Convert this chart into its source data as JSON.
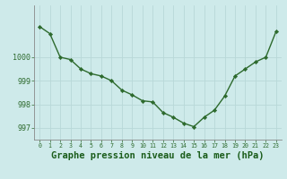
{
  "x": [
    0,
    1,
    2,
    3,
    4,
    5,
    6,
    7,
    8,
    9,
    10,
    11,
    12,
    13,
    14,
    15,
    16,
    17,
    18,
    19,
    20,
    21,
    22,
    23
  ],
  "y": [
    1001.3,
    1001.0,
    1000.0,
    999.9,
    999.5,
    999.3,
    999.2,
    999.0,
    998.6,
    998.4,
    998.15,
    998.1,
    997.65,
    997.45,
    997.2,
    997.05,
    997.45,
    997.75,
    998.35,
    999.2,
    999.5,
    999.8,
    1000.0,
    1001.1
  ],
  "line_color": "#2d6a2d",
  "marker_color": "#2d6a2d",
  "bg_color": "#ceeaea",
  "grid_color": "#b8d8d8",
  "xlabel": "Graphe pression niveau de la mer (hPa)",
  "xlabel_fontsize": 7.5,
  "yticks": [
    997,
    998,
    999,
    1000
  ],
  "xticks": [
    0,
    1,
    2,
    3,
    4,
    5,
    6,
    7,
    8,
    9,
    10,
    11,
    12,
    13,
    14,
    15,
    16,
    17,
    18,
    19,
    20,
    21,
    22,
    23
  ],
  "ylim": [
    996.5,
    1002.2
  ],
  "xlim": [
    -0.5,
    23.5
  ]
}
